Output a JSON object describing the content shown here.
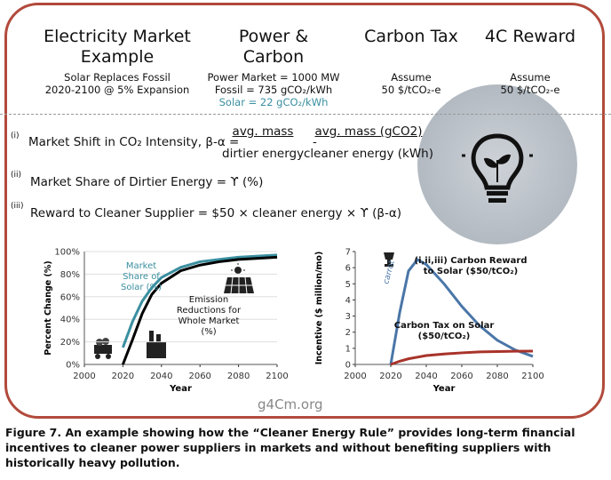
{
  "header": {
    "columns": [
      {
        "title": "Electricity Market Example",
        "lines": [
          "Solar Replaces Fossil",
          "2020-2100 @ 5% Expansion"
        ]
      },
      {
        "title": "Power & Carbon",
        "lines": [
          "Power Market = 1000 MW",
          "Fossil = 735 gCO₂/kWh",
          "Solar = 22 gCO₂/kWh"
        ]
      },
      {
        "title": "Carbon Tax",
        "lines": [
          "Assume",
          "50 $/tCO₂-e"
        ]
      },
      {
        "title": "4C Reward",
        "lines": [
          "Assume",
          "50 $/tCO₂-e"
        ]
      }
    ]
  },
  "formulas": [
    {
      "marker": "(i)",
      "text": "Market Shift in CO₂ Intensity, β-α =",
      "frac1": [
        "avg. mass",
        "dirtier energy"
      ],
      "minus": "-",
      "frac2": [
        "avg. mass (gCO2)",
        "cleaner energy (kWh)"
      ]
    },
    {
      "marker": "(ii)",
      "text": "Market Share of Dirtier Energy = ϒ (%)"
    },
    {
      "marker": "(iii)",
      "text": "Reward to Cleaner Supplier  = $50 × cleaner energy × ϒ (β-α)"
    }
  ],
  "chart_data": [
    {
      "type": "line",
      "xlabel": "Year",
      "ylabel": "Percent Change (%)",
      "x": [
        2020,
        2025,
        2030,
        2035,
        2040,
        2050,
        2060,
        2070,
        2080,
        2090,
        2100
      ],
      "xlim": [
        2000,
        2100
      ],
      "xticks": [
        2000,
        2020,
        2040,
        2060,
        2080,
        2100
      ],
      "ylim": [
        0,
        100
      ],
      "yticks": [
        {
          "value": 0,
          "label": "0%"
        },
        {
          "value": 20,
          "label": "20%"
        },
        {
          "value": 40,
          "label": "40%"
        },
        {
          "value": 60,
          "label": "60%"
        },
        {
          "value": 80,
          "label": "80%"
        },
        {
          "value": 100,
          "label": "100%"
        }
      ],
      "grid": true,
      "series": [
        {
          "name": "Market Share of Solar (%)",
          "color": "#3a8fa0",
          "values": [
            15,
            38,
            56,
            68,
            77,
            86,
            91,
            93,
            95,
            96,
            97
          ]
        },
        {
          "name": "Emission Reductions for Whole Market (%)",
          "color": "#000000",
          "values": [
            0,
            22,
            45,
            62,
            72,
            83,
            88,
            91,
            93,
            94,
            95
          ]
        }
      ]
    },
    {
      "type": "line",
      "xlabel": "Year",
      "ylabel": "Incentive ($ million/mo)",
      "x": [
        2020,
        2025,
        2030,
        2035,
        2040,
        2050,
        2060,
        2070,
        2080,
        2090,
        2100
      ],
      "xlim": [
        2000,
        2100
      ],
      "xticks": [
        2000,
        2020,
        2040,
        2060,
        2080,
        2100
      ],
      "ylim": [
        0,
        7
      ],
      "yticks": [
        0,
        1,
        2,
        3,
        4,
        5,
        6,
        7
      ],
      "grid": false,
      "series": [
        {
          "name": "(i,ii,iii) Carbon Reward to Solar ($50/tCO₂)",
          "color": "#4a76a8",
          "values": [
            0,
            3.2,
            5.8,
            6.5,
            6.2,
            5.0,
            3.6,
            2.4,
            1.5,
            0.9,
            0.5
          ]
        },
        {
          "name": "Carbon Tax on Solar ($50/tCO₂)",
          "color": "#a8332a",
          "values": [
            0,
            0.2,
            0.35,
            0.45,
            0.55,
            0.65,
            0.72,
            0.78,
            0.8,
            0.82,
            0.83
          ]
        }
      ],
      "annotations": [
        "carrot"
      ]
    }
  ],
  "watermark": "g4Cm.org",
  "caption": "Figure 7. An example showing how the “Cleaner Energy Rule” provides long-term financial incentives to cleaner power suppliers in markets and without benefiting suppliers with historically heavy pollution."
}
